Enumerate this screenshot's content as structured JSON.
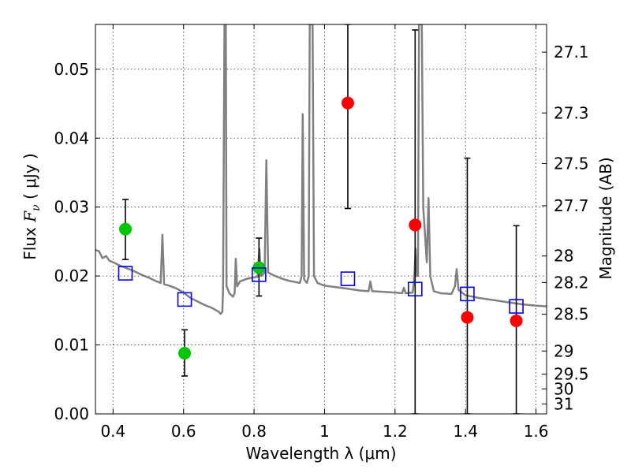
{
  "chart_data": {
    "type": "scatter",
    "xlabel": "Wavelength  λ (μm)",
    "ylabel": "Flux  F_ν  ( μJy )",
    "ylabel_parts": {
      "prefix": "Flux  ",
      "symbol": "F",
      "subscript": "ν",
      "suffix": "  ( μJy )"
    },
    "y2label": "Magnitude (AB)",
    "xlim": [
      0.35,
      1.63
    ],
    "ylim": [
      0.0,
      0.0565
    ],
    "grid": true,
    "x_ticks": [
      {
        "value": 0.4,
        "label": "0.4"
      },
      {
        "value": 0.6,
        "label": "0.6"
      },
      {
        "value": 0.8,
        "label": "0.8"
      },
      {
        "value": 1.0,
        "label": "1"
      },
      {
        "value": 1.2,
        "label": "1.2"
      },
      {
        "value": 1.4,
        "label": "1.4"
      },
      {
        "value": 1.6,
        "label": "1.6"
      }
    ],
    "y_ticks": [
      {
        "value": 0.0,
        "label": "0.00"
      },
      {
        "value": 0.01,
        "label": "0.01"
      },
      {
        "value": 0.02,
        "label": "0.02"
      },
      {
        "value": 0.03,
        "label": "0.03"
      },
      {
        "value": 0.04,
        "label": "0.04"
      },
      {
        "value": 0.05,
        "label": "0.05"
      }
    ],
    "y2_ticks": [
      {
        "value": 27.1,
        "label": "27.1"
      },
      {
        "value": 27.3,
        "label": "27.3"
      },
      {
        "value": 27.5,
        "label": "27.5"
      },
      {
        "value": 27.7,
        "label": "27.7"
      },
      {
        "value": 28.0,
        "label": "28"
      },
      {
        "value": 28.2,
        "label": "28.2"
      },
      {
        "value": 28.5,
        "label": "28.5"
      },
      {
        "value": 29.0,
        "label": "29"
      },
      {
        "value": 29.5,
        "label": "29.5"
      },
      {
        "value": 30.0,
        "label": "30"
      },
      {
        "value": 31.0,
        "label": "31"
      }
    ],
    "spectrum": {
      "color": "#808080",
      "points": [
        [
          0.35,
          0.0238
        ],
        [
          0.36,
          0.0236
        ],
        [
          0.37,
          0.0226
        ],
        [
          0.38,
          0.0229
        ],
        [
          0.39,
          0.0222
        ],
        [
          0.4,
          0.022
        ],
        [
          0.42,
          0.0215
        ],
        [
          0.44,
          0.0211
        ],
        [
          0.46,
          0.0207
        ],
        [
          0.48,
          0.0202
        ],
        [
          0.5,
          0.0198
        ],
        [
          0.52,
          0.0193
        ],
        [
          0.535,
          0.019
        ],
        [
          0.54,
          0.026
        ],
        [
          0.545,
          0.0188
        ],
        [
          0.56,
          0.0186
        ],
        [
          0.58,
          0.0182
        ],
        [
          0.6,
          0.0176
        ],
        [
          0.62,
          0.0168
        ],
        [
          0.64,
          0.0163
        ],
        [
          0.66,
          0.0158
        ],
        [
          0.68,
          0.0154
        ],
        [
          0.7,
          0.0148
        ],
        [
          0.705,
          0.0145
        ],
        [
          0.71,
          0.0148
        ],
        [
          0.712,
          0.018
        ],
        [
          0.716,
          0.0565
        ],
        [
          0.72,
          0.0565
        ],
        [
          0.722,
          0.0185
        ],
        [
          0.73,
          0.0175
        ],
        [
          0.74,
          0.017
        ],
        [
          0.745,
          0.0175
        ],
        [
          0.748,
          0.0225
        ],
        [
          0.752,
          0.0185
        ],
        [
          0.76,
          0.0192
        ],
        [
          0.78,
          0.0196
        ],
        [
          0.8,
          0.0198
        ],
        [
          0.81,
          0.0199
        ],
        [
          0.815,
          0.024
        ],
        [
          0.82,
          0.02
        ],
        [
          0.83,
          0.0205
        ],
        [
          0.835,
          0.0368
        ],
        [
          0.84,
          0.0205
        ],
        [
          0.86,
          0.02
        ],
        [
          0.88,
          0.0196
        ],
        [
          0.9,
          0.0193
        ],
        [
          0.93,
          0.019
        ],
        [
          0.935,
          0.02
        ],
        [
          0.938,
          0.0435
        ],
        [
          0.942,
          0.0195
        ],
        [
          0.95,
          0.019
        ],
        [
          0.955,
          0.02
        ],
        [
          0.958,
          0.0565
        ],
        [
          0.962,
          0.0565
        ],
        [
          0.966,
          0.0565
        ],
        [
          0.97,
          0.02
        ],
        [
          0.98,
          0.019
        ],
        [
          1.0,
          0.0186
        ],
        [
          1.03,
          0.0184
        ],
        [
          1.06,
          0.0182
        ],
        [
          1.1,
          0.0179
        ],
        [
          1.125,
          0.0178
        ],
        [
          1.13,
          0.0192
        ],
        [
          1.135,
          0.0178
        ],
        [
          1.17,
          0.0177
        ],
        [
          1.2,
          0.0176
        ],
        [
          1.22,
          0.0175
        ],
        [
          1.225,
          0.0183
        ],
        [
          1.23,
          0.0175
        ],
        [
          1.25,
          0.0176
        ],
        [
          1.255,
          0.02
        ],
        [
          1.258,
          0.024
        ],
        [
          1.262,
          0.02
        ],
        [
          1.265,
          0.02
        ],
        [
          1.268,
          0.0565
        ],
        [
          1.276,
          0.0565
        ],
        [
          1.28,
          0.03
        ],
        [
          1.29,
          0.022
        ],
        [
          1.295,
          0.0313
        ],
        [
          1.3,
          0.02
        ],
        [
          1.31,
          0.0178
        ],
        [
          1.33,
          0.0175
        ],
        [
          1.36,
          0.0174
        ],
        [
          1.37,
          0.0185
        ],
        [
          1.375,
          0.021
        ],
        [
          1.38,
          0.018
        ],
        [
          1.4,
          0.0172
        ],
        [
          1.44,
          0.0168
        ],
        [
          1.48,
          0.0165
        ],
        [
          1.52,
          0.0162
        ],
        [
          1.56,
          0.0159
        ],
        [
          1.6,
          0.0157
        ],
        [
          1.63,
          0.0156
        ]
      ]
    },
    "series": [
      {
        "marker": "circle",
        "color": "#00c800",
        "points": [
          {
            "x": 0.435,
            "y": 0.0268,
            "yerr_low": 0.0224,
            "yerr_high": 0.0311
          },
          {
            "x": 0.603,
            "y": 0.0088,
            "yerr_low": 0.0055,
            "yerr_high": 0.0122
          },
          {
            "x": 0.814,
            "y": 0.0212,
            "yerr_low": 0.0171,
            "yerr_high": 0.0255
          }
        ]
      },
      {
        "marker": "circle",
        "color": "#ff0000",
        "points": [
          {
            "x": 1.066,
            "y": 0.0451,
            "yerr_low": 0.0298,
            "yerr_high": 0.0565
          },
          {
            "x": 1.257,
            "y": 0.0274,
            "yerr_low": 0.0,
            "yerr_high": 0.0557
          },
          {
            "x": 1.405,
            "y": 0.014,
            "yerr_low": 0.0,
            "yerr_high": 0.0371
          },
          {
            "x": 1.544,
            "y": 0.0135,
            "yerr_low": 0.0,
            "yerr_high": 0.0273
          }
        ]
      },
      {
        "marker": "open-square",
        "color": "#0000ff",
        "points": [
          {
            "x": 0.435,
            "y": 0.0204
          },
          {
            "x": 0.603,
            "y": 0.0166
          },
          {
            "x": 0.814,
            "y": 0.0202
          },
          {
            "x": 1.066,
            "y": 0.0196
          },
          {
            "x": 1.257,
            "y": 0.0181
          },
          {
            "x": 1.405,
            "y": 0.0174
          },
          {
            "x": 1.544,
            "y": 0.0156
          }
        ]
      }
    ]
  }
}
